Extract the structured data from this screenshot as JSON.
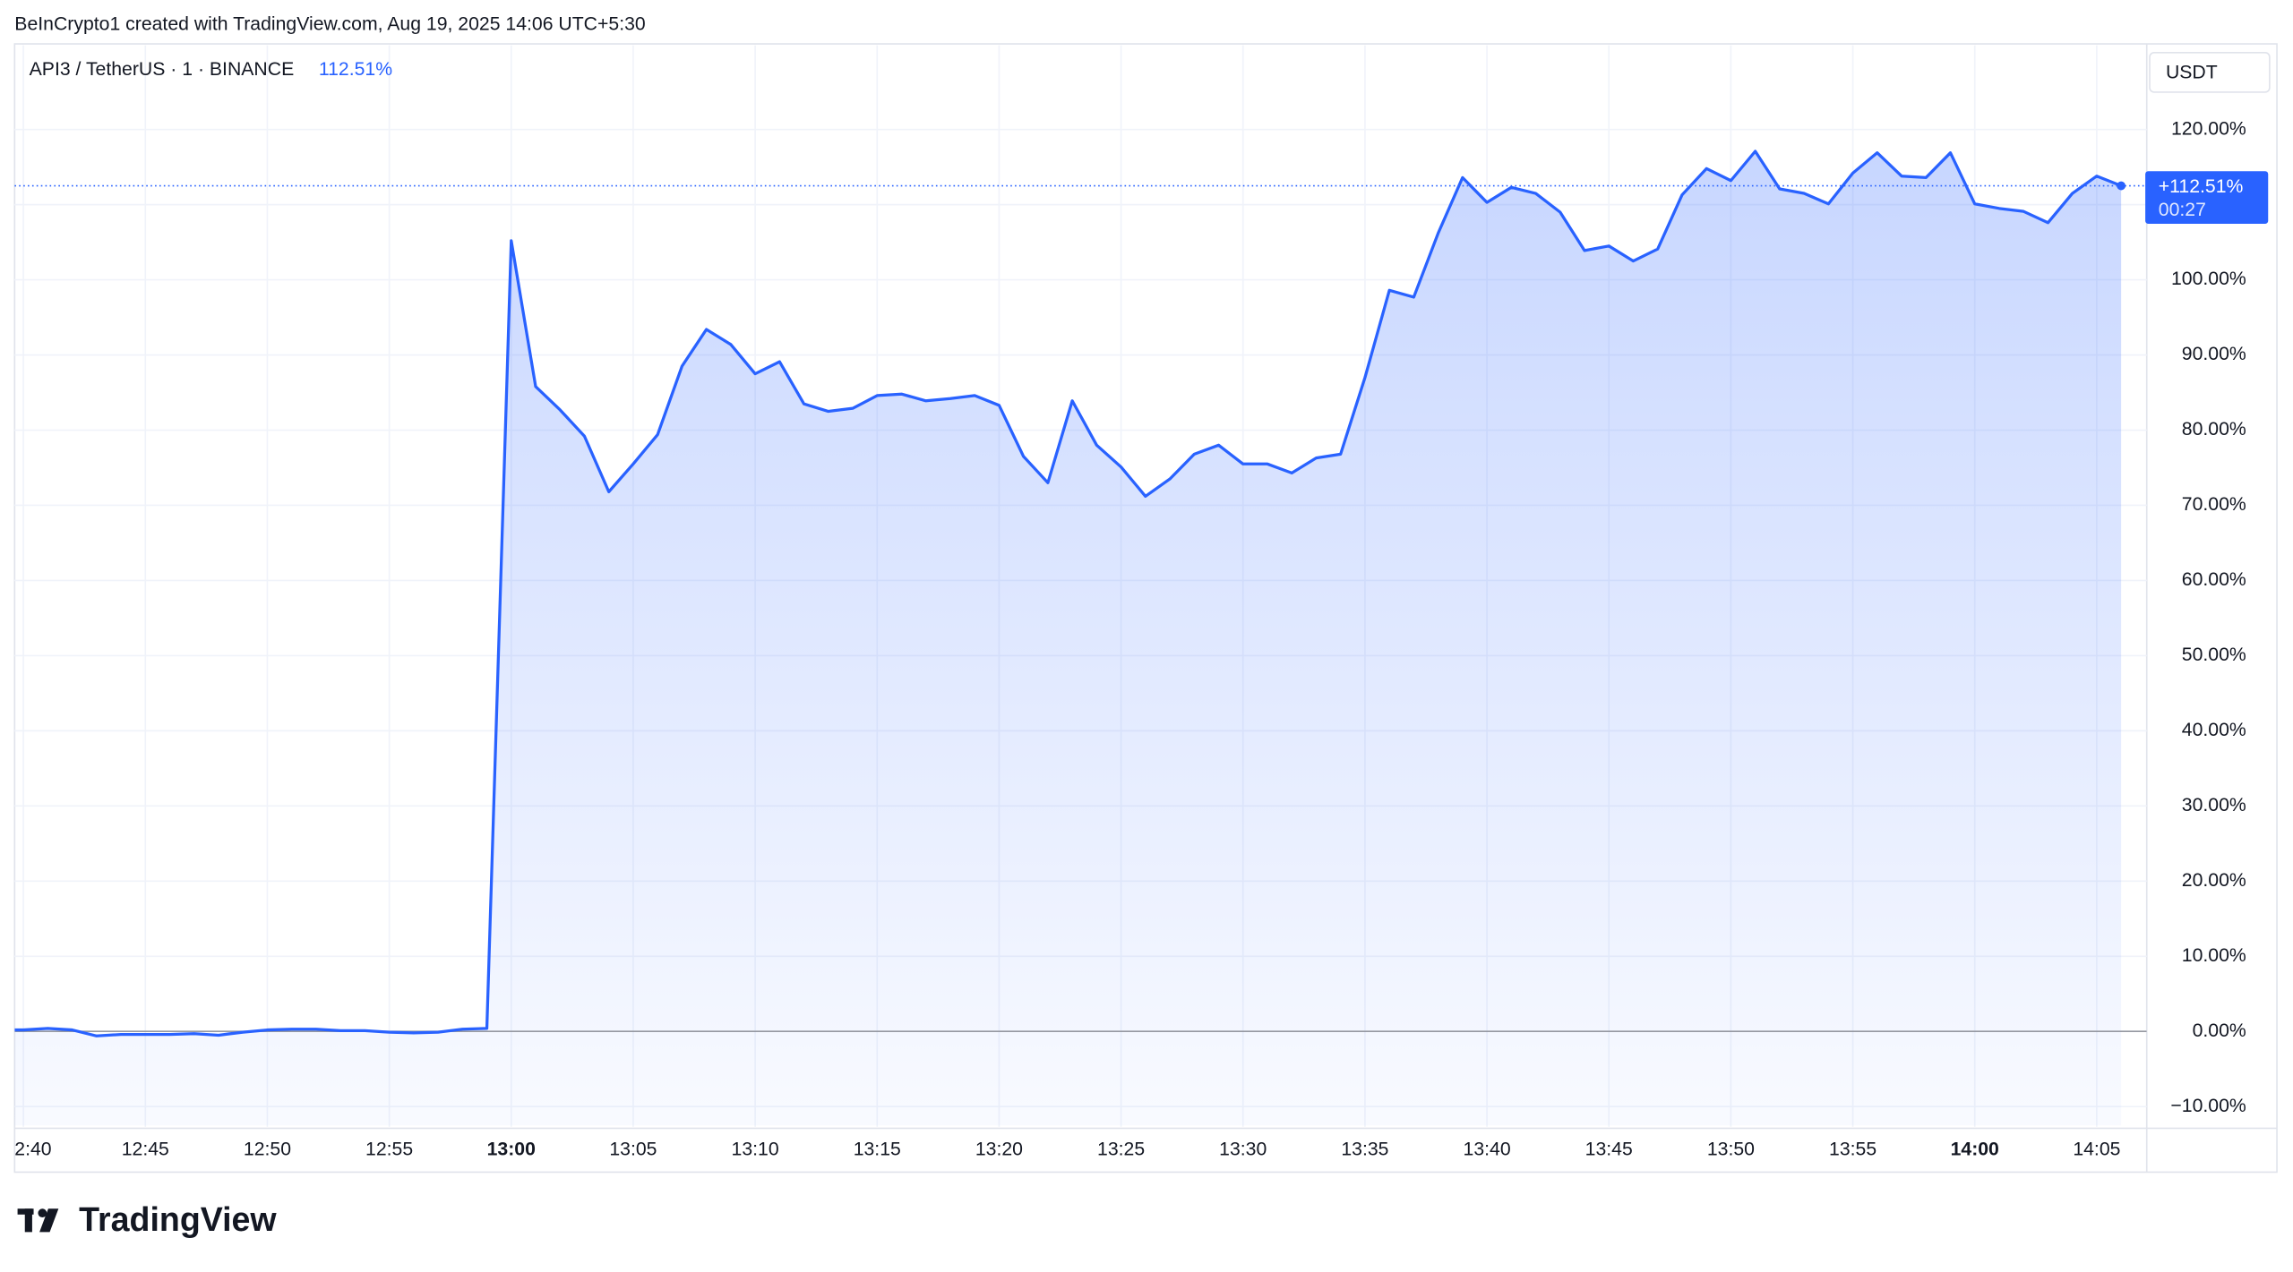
{
  "header": "BeInCrypto1 created with TradingView.com, Aug 19, 2025 14:06 UTC+5:30",
  "chart_data": {
    "type": "area",
    "symbol": "API3 / TetherUS · 1 · BINANCE",
    "legend_value": "112.51%",
    "currency": "USDT",
    "price_label": "+112.51%",
    "countdown": "00:27",
    "categories": [
      "2:40",
      null,
      null,
      null,
      null,
      "12:45",
      null,
      null,
      null,
      null,
      "12:50",
      null,
      null,
      null,
      null,
      "12:55",
      null,
      null,
      null,
      null,
      "13:00",
      null,
      null,
      null,
      null,
      "13:05",
      null,
      null,
      null,
      null,
      "13:10",
      null,
      null,
      null,
      null,
      "13:15",
      null,
      null,
      null,
      null,
      "13:20",
      null,
      null,
      null,
      null,
      "13:25",
      null,
      null,
      null,
      null,
      "13:30",
      null,
      null,
      null,
      null,
      "13:35",
      null,
      null,
      null,
      null,
      "13:40",
      null,
      null,
      null,
      null,
      "13:45",
      null,
      null,
      null,
      null,
      "13:50",
      null,
      null,
      null,
      null,
      "13:55",
      null,
      null,
      null,
      null,
      "14:00",
      null,
      null,
      null,
      null,
      "14:05",
      null
    ],
    "series": [
      {
        "name": "API3 / TetherUS",
        "color": "#2962ff",
        "values": [
          0.2,
          0.4,
          0.2,
          -0.6,
          -0.4,
          -0.4,
          -0.4,
          -0.3,
          -0.5,
          -0.1,
          0.2,
          0.3,
          0.3,
          0.1,
          0.1,
          -0.1,
          -0.2,
          -0.1,
          0.3,
          0.4,
          105.2,
          85.8,
          82.7,
          79.2,
          71.8,
          75.5,
          79.4,
          88.5,
          93.4,
          91.4,
          87.5,
          89.1,
          83.5,
          82.5,
          82.9,
          84.6,
          84.8,
          83.9,
          84.2,
          84.6,
          83.3,
          76.5,
          73.0,
          83.9,
          78.0,
          75.1,
          71.2,
          73.5,
          76.8,
          78.0,
          75.5,
          75.5,
          74.3,
          76.3,
          76.8,
          87.0,
          98.6,
          97.7,
          106.2,
          113.6,
          110.3,
          112.3,
          111.5,
          109.0,
          103.9,
          104.5,
          102.5,
          104.1,
          111.3,
          114.8,
          113.2,
          117.1,
          112.1,
          111.5,
          110.1,
          114.2,
          116.9,
          113.8,
          113.6,
          116.9,
          110.1,
          109.5,
          109.1,
          107.6,
          111.5,
          113.8,
          112.51
        ]
      }
    ],
    "ylim": [
      -12.5,
      131
    ],
    "yticks": [
      {
        "value": -10,
        "label": "−10.00%"
      },
      {
        "value": 0,
        "label": "0.00%"
      },
      {
        "value": 10,
        "label": "10.00%"
      },
      {
        "value": 20,
        "label": "20.00%"
      },
      {
        "value": 30,
        "label": "30.00%"
      },
      {
        "value": 40,
        "label": "40.00%"
      },
      {
        "value": 50,
        "label": "50.00%"
      },
      {
        "value": 60,
        "label": "60.00%"
      },
      {
        "value": 70,
        "label": "70.00%"
      },
      {
        "value": 80,
        "label": "80.00%"
      },
      {
        "value": 90,
        "label": "90.00%"
      },
      {
        "value": 100,
        "label": "100.00%"
      },
      {
        "value": 110,
        "label": ""
      },
      {
        "value": 120,
        "label": "120.00%"
      }
    ],
    "grid": true
  },
  "logo": "TradingView"
}
